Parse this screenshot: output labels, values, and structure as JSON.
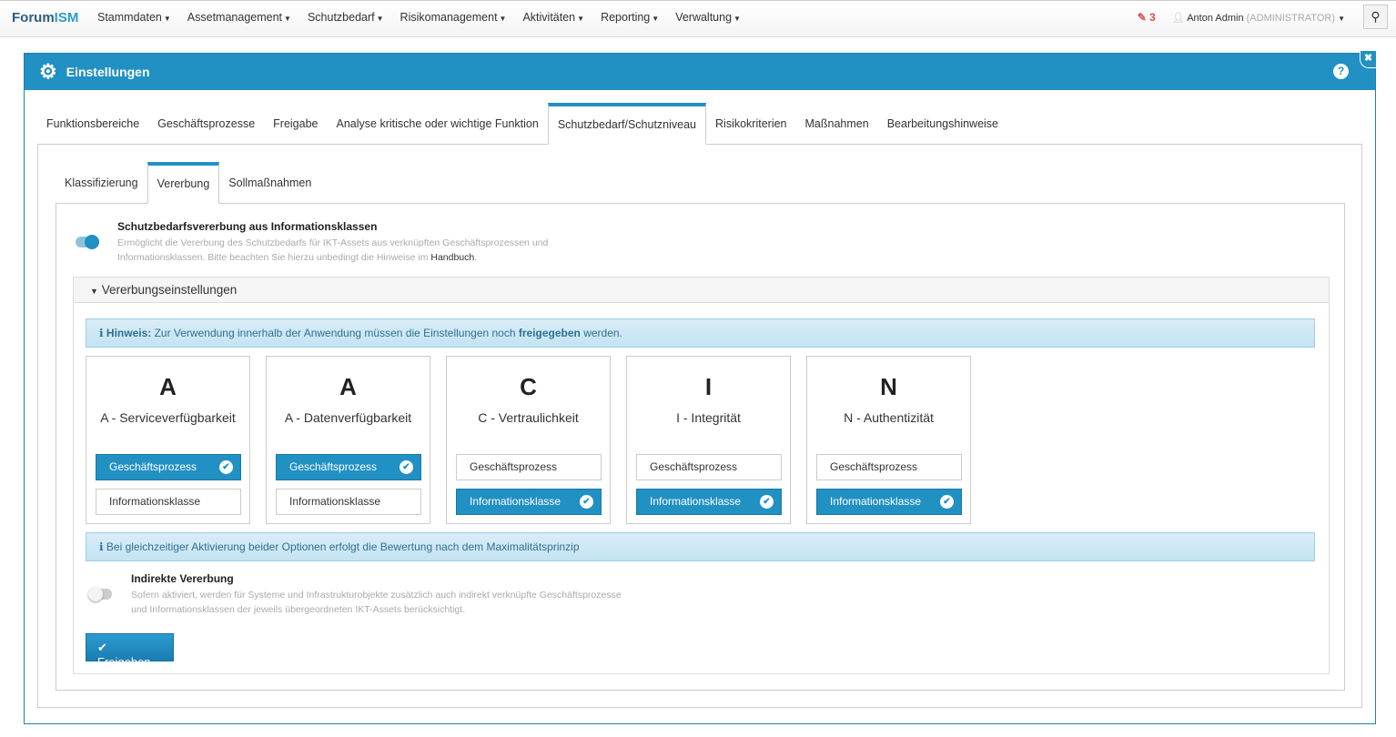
{
  "nav": {
    "brand_a": "Forum",
    "brand_b": "ISM",
    "menu": [
      "Stammdaten",
      "Assetmanagement",
      "Schutzbedarf",
      "Risikomanagement",
      "Aktivitäten",
      "Reporting",
      "Verwaltung"
    ],
    "notifications": "3",
    "user": "Anton Admin",
    "role": "(ADMINISTRATOR)"
  },
  "modal": {
    "title": "Einstellungen",
    "tabs": [
      "Funktionsbereiche",
      "Geschäftsprozesse",
      "Freigabe",
      "Analyse kritische oder wichtige Funktion",
      "Schutzbedarf/Schutzniveau",
      "Risikokriterien",
      "Maßnahmen",
      "Bearbeitungshinweise"
    ],
    "active_tab": "Schutzbedarf/Schutzniveau",
    "subtabs": [
      "Klassifizierung",
      "Vererbung",
      "Sollmaßnahmen"
    ],
    "active_subtab": "Vererbung"
  },
  "vererbung": {
    "title": "Schutzbedarfsvererbung aus Informationsklassen",
    "desc1": "Ermöglicht die Vererbung des Schutzbedarfs für IKT-Assets aus verknüpften Geschäftsprozessen und",
    "desc2": "Informationsklassen. Bitte beachten Sie hierzu unbedingt die Hinweise im ",
    "link": "Handbuch",
    "desc_end": ".",
    "enabled": true
  },
  "panel": {
    "title": "Vererbungseinstellungen",
    "hint_label": "Hinweis:",
    "hint_a": " Zur Verwendung innerhalb der Anwendung müssen die Einstellungen noch ",
    "hint_b": "freigegeben",
    "hint_c": " werden.",
    "cards": [
      {
        "letter": "A",
        "label": "A - Serviceverfügbarkeit",
        "opt1": "Geschäftsprozess",
        "opt2": "Informationsklasse",
        "sel1": true,
        "sel2": false
      },
      {
        "letter": "A",
        "label": "A - Datenverfügbarkeit",
        "opt1": "Geschäftsprozess",
        "opt2": "Informationsklasse",
        "sel1": true,
        "sel2": false
      },
      {
        "letter": "C",
        "label": "C - Vertraulichkeit",
        "opt1": "Geschäftsprozess",
        "opt2": "Informationsklasse",
        "sel1": false,
        "sel2": true
      },
      {
        "letter": "I",
        "label": "I - Integrität",
        "opt1": "Geschäftsprozess",
        "opt2": "Informationsklasse",
        "sel1": false,
        "sel2": true
      },
      {
        "letter": "N",
        "label": "N - Authentizität",
        "opt1": "Geschäftsprozess",
        "opt2": "Informationsklasse",
        "sel1": false,
        "sel2": true
      }
    ],
    "info2": "Bei gleichzeitiger Aktivierung beider Optionen erfolgt die Bewertung nach dem Maximalitätsprinzip",
    "indirect_title": "Indirekte Vererbung",
    "indirect_desc1": "Sofern aktiviert, werden für Systeme und Infrastrukturobjekte zusätzlich auch indirekt verknüpfte Geschäftsprozesse",
    "indirect_desc2": "und Informationsklassen der jeweils übergeordneten IKT-Assets berücksichtigt.",
    "indirect_enabled": false,
    "submit": "Freigeben"
  },
  "colors": {
    "primary": "#2190c3",
    "alert_bg": "#d9edf7",
    "notification": "#d9534f"
  }
}
